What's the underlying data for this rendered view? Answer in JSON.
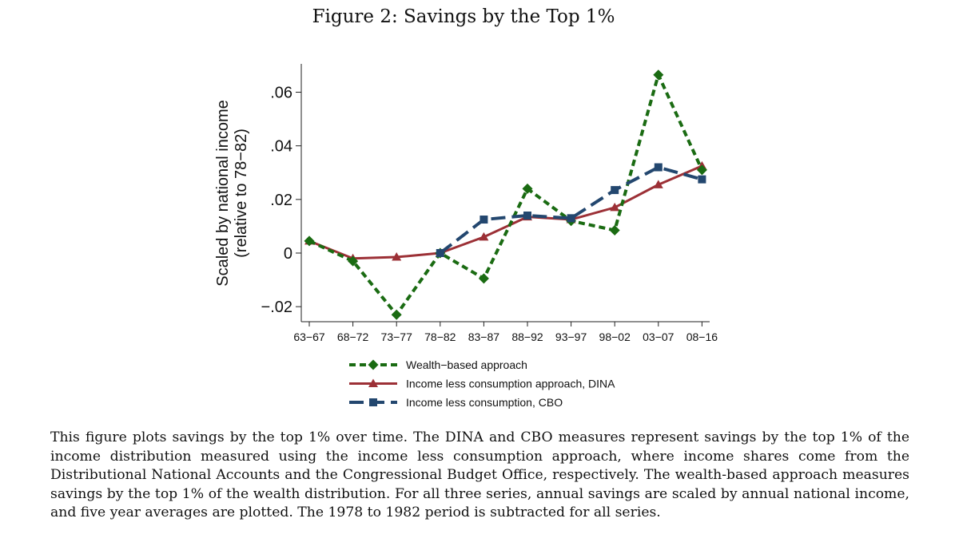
{
  "figure": {
    "title": "Figure 2: Savings by the Top 1%"
  },
  "chart_data": {
    "type": "line",
    "title": "Figure 2: Savings by the Top 1%",
    "xlabel": "",
    "ylabel": "Scaled by national income (relative to 78−82)",
    "ylabel_lines": [
      "Scaled by national income",
      "(relative to 78−82)"
    ],
    "categories": [
      "63−67",
      "68−72",
      "73−77",
      "78−82",
      "83−87",
      "88−92",
      "93−97",
      "98−02",
      "03−07",
      "08−16"
    ],
    "ylim": [
      -0.025,
      0.07
    ],
    "yticks": [
      -0.02,
      0,
      0.02,
      0.04,
      0.06
    ],
    "ytick_labels": [
      "−.02",
      "0",
      ".02",
      ".04",
      ".06"
    ],
    "grid": false,
    "legend_position": "bottom",
    "series": [
      {
        "name": "Wealth−based approach",
        "color": "#1a6b12",
        "marker": "diamond",
        "line": "short-dash",
        "values": [
          0.0045,
          -0.003,
          -0.023,
          0.0,
          -0.0095,
          0.024,
          0.012,
          0.0085,
          0.0665,
          0.031
        ]
      },
      {
        "name": "Income less consumption approach, DINA",
        "color": "#9c3036",
        "marker": "triangle",
        "line": "solid",
        "values": [
          0.0045,
          -0.002,
          -0.0015,
          0.0,
          0.006,
          0.0135,
          0.0125,
          0.017,
          0.0255,
          0.0325
        ]
      },
      {
        "name": "Income less consumption, CBO",
        "color": "#23476f",
        "marker": "square",
        "line": "long-dash",
        "values": [
          null,
          null,
          null,
          0.0,
          0.0125,
          0.014,
          0.013,
          0.0235,
          0.032,
          0.0275
        ]
      }
    ]
  },
  "caption": {
    "text": "This figure plots savings by the top 1% over time. The DINA and CBO measures represent savings by the top 1% of the income distribution measured using the income less consumption approach, where income shares come from the Distributional National Accounts and the Congressional Budget Office, respectively. The wealth-based approach measures savings by the top 1% of the wealth distribution. For all three series, annual savings are scaled by annual national income, and five year averages are plotted. The 1978 to 1982 period is subtracted for all series."
  }
}
